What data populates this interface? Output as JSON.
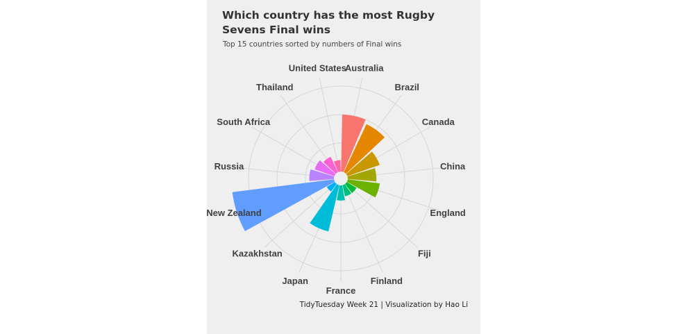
{
  "title": "Which country has the most Rugby Sevens Final wins",
  "subtitle": "Top 15 countries sorted by numbers of Final wins",
  "caption": "TidyTuesday Week 21 | Visualization by Hao Li",
  "chart_data": {
    "type": "polar-bar",
    "title": "Which country has the most Rugby Sevens Final wins",
    "subtitle": "Top 15 countries sorted by numbers of Final wins",
    "categories": [
      "Australia",
      "Brazil",
      "Canada",
      "China",
      "England",
      "Fiji",
      "Finland",
      "France",
      "Japan",
      "Kazakhstan",
      "New Zealand",
      "Russia",
      "South Africa",
      "Thailand",
      "United States"
    ],
    "values": [
      3.0,
      2.8,
      1.8,
      1.5,
      1.7,
      0.6,
      0.6,
      0.8,
      2.5,
      0.5,
      5.4,
      1.3,
      1.1,
      0.9,
      0.6
    ],
    "colors": [
      "#F8766D",
      "#E58700",
      "#C99800",
      "#A3A500",
      "#6BB100",
      "#00BA38",
      "#00BF7D",
      "#00C0AF",
      "#00BCD8",
      "#00B0F6",
      "#619CFF",
      "#B983FF",
      "#E76BF3",
      "#FD61D1",
      "#FF67A4"
    ],
    "radial_range": [
      0,
      6
    ],
    "grid": true,
    "legend": "none"
  }
}
